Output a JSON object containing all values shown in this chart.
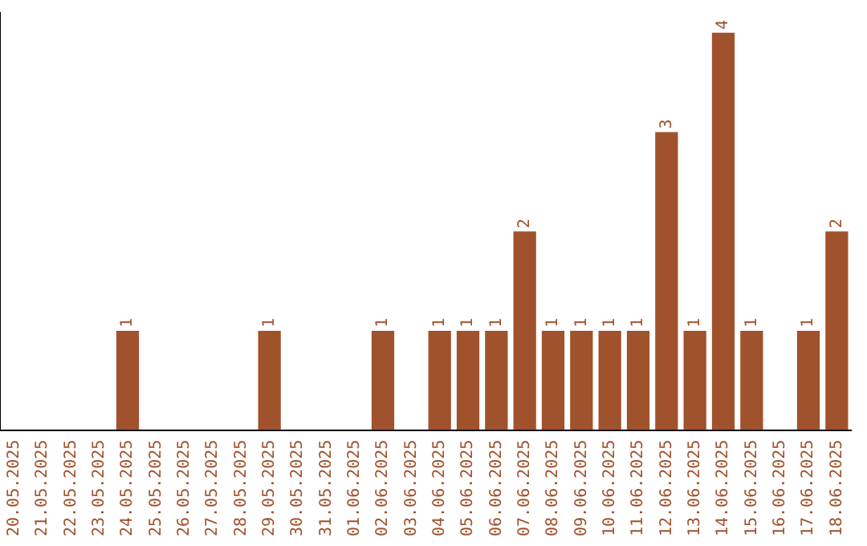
{
  "chart_data": {
    "type": "bar",
    "categories": [
      "20.05.2025",
      "21.05.2025",
      "22.05.2025",
      "23.05.2025",
      "24.05.2025",
      "25.05.2025",
      "26.05.2025",
      "27.05.2025",
      "28.05.2025",
      "29.05.2025",
      "30.05.2025",
      "31.05.2025",
      "01.06.2025",
      "02.06.2025",
      "03.06.2025",
      "04.06.2025",
      "05.06.2025",
      "06.06.2025",
      "07.06.2025",
      "08.06.2025",
      "09.06.2025",
      "10.06.2025",
      "11.06.2025",
      "12.06.2025",
      "13.06.2025",
      "14.06.2025",
      "15.06.2025",
      "16.06.2025",
      "17.06.2025",
      "18.06.2025"
    ],
    "values": [
      0,
      0,
      0,
      0,
      1,
      0,
      0,
      0,
      0,
      1,
      0,
      0,
      0,
      1,
      0,
      1,
      1,
      1,
      2,
      1,
      1,
      1,
      1,
      3,
      1,
      4,
      1,
      0,
      1,
      2
    ],
    "value_labels": [
      null,
      null,
      null,
      null,
      "1",
      null,
      null,
      null,
      null,
      "1",
      null,
      null,
      null,
      "1",
      null,
      "1",
      "1",
      "1",
      "2",
      "1",
      "1",
      "1",
      "1",
      "3",
      "1",
      "4",
      "1",
      null,
      "1",
      "2"
    ],
    "color": "#a0522d",
    "ylim": [
      0,
      4.2
    ],
    "tick_labels": "x",
    "grid": false,
    "legend": false
  }
}
